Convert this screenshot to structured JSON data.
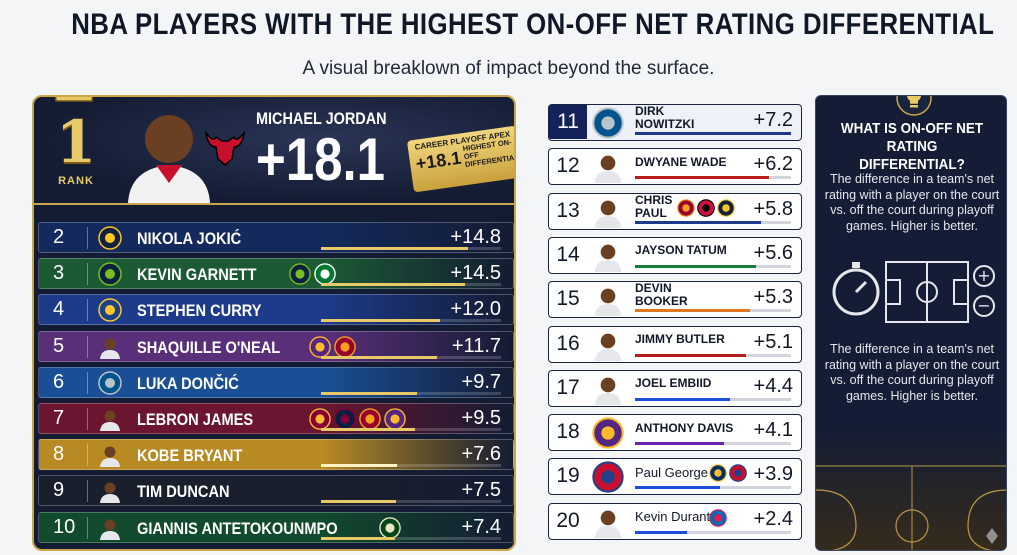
{
  "title": "NBA PLAYERS WITH THE HIGHEST ON-OFF NET RATING DIFFERENTIAL",
  "subtitle": "A visual breaklown of impact beyond the surface.",
  "colors": {
    "navy": "#131c33",
    "gold": "#c9a64a",
    "accent_blue": "#13235a"
  },
  "hero": {
    "rank": "1",
    "rank_label": "RANK",
    "name": "MICHAEL JORDAN",
    "value_label": "+18.1",
    "badge_line1": "CAREER PLAYOFF APEX",
    "badge_value": "+18.1",
    "badge_text": "HIGHEST ON-OFF DIFFERENTIAL",
    "team_icon": "bulls-icon"
  },
  "sidebar": {
    "icon": "lightbulb-icon",
    "heading": "WHAT IS ON-OFF NET RATING DIFFERENTIAL?",
    "desc1": "The difference in a team's net rating with a player on the court vs. off the court during playoff games. Higher is better.",
    "desc2": "The difference in a team's net rating with a player on the court vs. off the court during playoff games. Higher is better."
  },
  "chart_data": {
    "type": "bar",
    "title": "NBA PLAYERS WITH THE HIGHEST ON-OFF NET RATING DIFFERENTIAL",
    "subtitle": "A visual breaklown of impact beyond the surface.",
    "categories": [
      "MICHAEL JORDAN",
      "NIKOLA JOKIĆ",
      "KEVIN GARNETT",
      "STEPHEN CURRY",
      "SHAQUILLE O'NEAL",
      "LUKA DONČIĆ",
      "LEBRON JAMES",
      "KOBE BRYANT",
      "TIM DUNCAN",
      "GIANNIS ANTETOKOUNMPO",
      "DIRK NOWITZKI",
      "DWYANE WADE",
      "CHRIS PAUL",
      "JAYSON TATUM",
      "DEVIN BOOKER",
      "JIMMY BUTLER",
      "JOEL EMBIID",
      "ANTHONY DAVIS",
      "Paul George",
      "Kevin Durant"
    ],
    "values": [
      18.1,
      14.8,
      14.5,
      12.0,
      11.7,
      9.7,
      9.5,
      7.6,
      7.5,
      7.4,
      7.2,
      6.2,
      5.8,
      5.6,
      5.3,
      5.1,
      4.4,
      4.1,
      3.9,
      2.4
    ],
    "ylim": [
      0,
      18.1
    ],
    "legend": "none",
    "rows_left": [
      {
        "rank": "2",
        "name": "NIKOLA JOKIĆ",
        "value": 14.8,
        "label": "+14.8",
        "bg": "#142a5c",
        "bar": "#e7c968",
        "logo": "nuggets-icon",
        "extra": []
      },
      {
        "rank": "3",
        "name": "KEVIN GARNETT",
        "value": 14.5,
        "label": "+14.5",
        "bg": "#1c5a34",
        "bar": "#e7c968",
        "logo": "timberwolves-icon",
        "extra": [
          "timberwolves-icon",
          "celtics-icon"
        ]
      },
      {
        "rank": "4",
        "name": "STEPHEN CURRY",
        "value": 12.0,
        "label": "+12.0",
        "bg": "#1d3b8a",
        "bar": "#e7c968",
        "logo": "warriors-icon",
        "extra": []
      },
      {
        "rank": "5",
        "name": "SHAQUILLE O'NEAL",
        "value": 11.7,
        "label": "+11.7",
        "bg": "#5a2f7a",
        "bar": "#e7c968",
        "logo": "player-icon",
        "extra": [
          "lakers-icon",
          "heat-icon"
        ]
      },
      {
        "rank": "6",
        "name": "LUKA DONČIĆ",
        "value": 9.7,
        "label": "+9.7",
        "bg": "#1a4f96",
        "bar": "#e7c968",
        "logo": "mavericks-icon",
        "extra": []
      },
      {
        "rank": "7",
        "name": "LEBRON JAMES",
        "value": 9.5,
        "label": "+9.5",
        "bg": "#6b1530",
        "bar": "#e7c968",
        "logo": "player-icon",
        "extra": [
          "cavaliers-icon",
          "cavaliers-alt-icon",
          "heat-icon",
          "lakers-icon"
        ]
      },
      {
        "rank": "8",
        "name": "KOBE BRYANT",
        "value": 7.6,
        "label": "+7.6",
        "bg": "#b88a24",
        "bar": "#fff3c4",
        "logo": "player-icon",
        "extra": []
      },
      {
        "rank": "9",
        "name": "TIM DUNCAN",
        "value": 7.5,
        "label": "+7.5",
        "bg": "#1a1f2d",
        "bar": "#e7c968",
        "logo": "player-icon",
        "extra": []
      },
      {
        "rank": "10",
        "name": "GIANNIS ANTETOKOUNMPO",
        "value": 7.4,
        "label": "+7.4",
        "bg": "#114a2c",
        "bar": "#e7c968",
        "logo": "player-icon",
        "extra": [
          "bucks-icon"
        ]
      }
    ],
    "rows_right": [
      {
        "rank": "11",
        "name": "DIRK\nNOWITZKI",
        "value": 7.2,
        "label": "+7.2",
        "bar": "#1d3b8a",
        "photo": "mavericks-icon",
        "plain": false,
        "teams": []
      },
      {
        "rank": "12",
        "name": "DWYANE WADE",
        "value": 6.2,
        "label": "+6.2",
        "bar": "#b91c1c",
        "photo": "player-icon",
        "plain": false,
        "teams": []
      },
      {
        "rank": "13",
        "name": "CHRIS\nPAUL",
        "value": 5.8,
        "label": "+5.8",
        "bar": "#1d3b8a",
        "photo": "player-icon",
        "plain": false,
        "teams": [
          "heat-icon",
          "bulls-icon",
          "nuggets-icon"
        ]
      },
      {
        "rank": "14",
        "name": "JAYSON TATUM",
        "value": 5.6,
        "label": "+5.6",
        "bar": "#15803d",
        "photo": "player-icon",
        "plain": false,
        "teams": []
      },
      {
        "rank": "15",
        "name": "DEVIN\nBOOKER",
        "value": 5.3,
        "label": "+5.3",
        "bar": "#e0761f",
        "photo": "player-icon",
        "plain": false,
        "teams": []
      },
      {
        "rank": "16",
        "name": "JIMMY BUTLER",
        "value": 5.1,
        "label": "+5.1",
        "bar": "#b91c1c",
        "photo": "player-icon",
        "plain": false,
        "teams": []
      },
      {
        "rank": "17",
        "name": "JOEL EMBIID",
        "value": 4.4,
        "label": "+4.4",
        "bar": "#1d4ed8",
        "photo": "player-icon",
        "plain": false,
        "teams": []
      },
      {
        "rank": "18",
        "name": "ANTHONY DAVIS",
        "value": 4.1,
        "label": "+4.1",
        "bar": "#6b21a8",
        "photo": "lakers-icon",
        "plain": false,
        "teams": []
      },
      {
        "rank": "19",
        "name": "Paul George",
        "value": 3.9,
        "label": "+3.9",
        "bar": "#1d4ed8",
        "photo": "clippers-icon",
        "plain": true,
        "teams": [
          "pacers-icon",
          "clippers-icon"
        ]
      },
      {
        "rank": "20",
        "name": "Kevin Durant",
        "value": 2.4,
        "label": "+2.4",
        "bar": "#1d4ed8",
        "photo": "player-icon",
        "plain": true,
        "teams": [
          "sixers-icon"
        ]
      }
    ]
  }
}
